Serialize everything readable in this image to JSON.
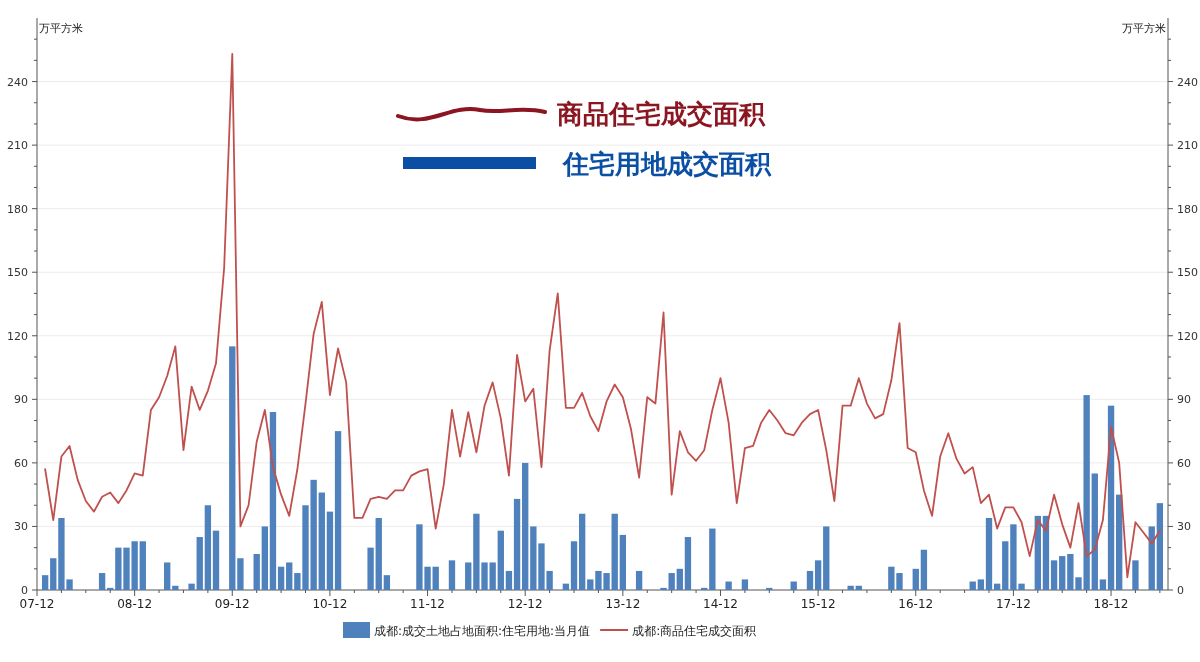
{
  "chart_data": {
    "type": "bar",
    "ylabel": "万平方米",
    "y2label": "万平方米",
    "categories": [
      "07-12",
      null,
      null,
      null,
      null,
      null,
      null,
      null,
      null,
      null,
      null,
      null,
      "08-12",
      null,
      null,
      null,
      null,
      null,
      null,
      null,
      null,
      null,
      null,
      null,
      "09-12",
      null,
      null,
      null,
      null,
      null,
      null,
      null,
      null,
      null,
      null,
      null,
      "10-12",
      null,
      null,
      null,
      null,
      null,
      null,
      null,
      null,
      null,
      null,
      null,
      "11-12",
      null,
      null,
      null,
      null,
      null,
      null,
      null,
      null,
      null,
      null,
      null,
      "12-12",
      null,
      null,
      null,
      null,
      null,
      null,
      null,
      null,
      null,
      null,
      null,
      "13-12",
      null,
      null,
      null,
      null,
      null,
      null,
      null,
      null,
      null,
      null,
      null,
      "14-12",
      null,
      null,
      null,
      null,
      null,
      null,
      null,
      null,
      null,
      null,
      null,
      "15-12",
      null,
      null,
      null,
      null,
      null,
      null,
      null,
      null,
      null,
      null,
      null,
      "16-12",
      null,
      null,
      null,
      null,
      null,
      null,
      null,
      null,
      null,
      null,
      null,
      "17-12",
      null,
      null,
      null,
      null,
      null,
      null,
      null,
      null,
      null,
      null,
      null,
      "18-12",
      null,
      null,
      null,
      null,
      null,
      null
    ],
    "series": [
      {
        "name": "成都:成交土地占地面积:住宅用地:当月值",
        "color": "#4f81bd",
        "values": [
          null,
          7,
          15,
          34,
          5,
          0,
          0,
          0,
          8,
          1,
          20,
          20,
          23,
          23,
          0,
          0,
          13,
          2,
          0,
          3,
          25,
          40,
          28,
          0,
          115,
          15,
          0,
          17,
          30,
          84,
          11,
          13,
          8,
          40,
          52,
          46,
          37,
          75,
          0,
          0,
          0,
          20,
          34,
          7,
          0,
          0,
          0,
          31,
          11,
          11,
          0,
          14,
          0,
          13,
          36,
          13,
          13,
          28,
          9,
          43,
          60,
          30,
          22,
          9,
          0,
          3,
          23,
          36,
          5,
          9,
          8,
          36,
          26,
          0,
          9,
          0,
          0,
          1,
          8,
          10,
          25,
          0,
          1,
          29,
          0,
          4,
          0,
          5,
          0,
          0,
          1,
          0,
          0,
          4,
          0,
          9,
          14,
          30,
          0,
          0,
          2,
          2,
          0,
          0,
          0,
          11,
          8,
          0,
          10,
          19,
          0,
          0,
          0,
          0,
          0,
          4,
          5,
          34,
          3,
          23,
          31,
          3,
          0,
          35,
          35,
          14,
          16,
          17,
          6,
          92,
          55,
          5,
          87,
          45,
          0,
          14,
          0,
          30,
          41
        ]
      },
      {
        "name": "成都:商品住宅成交面积",
        "type": "line",
        "color": "#c0504d",
        "values": [
          null,
          57,
          33,
          63,
          68,
          52,
          42,
          37,
          44,
          46,
          41,
          47,
          55,
          54,
          85,
          91,
          101,
          115,
          66,
          96,
          85,
          94,
          107,
          152,
          253,
          30,
          40,
          70,
          85,
          58,
          45,
          35,
          57,
          88,
          121,
          136,
          92,
          114,
          98,
          34,
          34,
          43,
          44,
          43,
          47,
          47,
          54,
          56,
          57,
          29,
          50,
          85,
          63,
          84,
          65,
          87,
          98,
          81,
          54,
          111,
          89,
          95,
          58,
          113,
          140,
          86,
          86,
          93,
          82,
          75,
          89,
          97,
          91,
          76,
          53,
          91,
          88,
          131,
          45,
          75,
          65,
          61,
          66,
          85,
          100,
          79,
          41,
          67,
          68,
          79,
          85,
          80,
          74,
          73,
          79,
          83,
          85,
          66,
          42,
          87,
          87,
          100,
          88,
          81,
          83,
          99,
          126,
          67,
          65,
          47,
          35,
          63,
          74,
          62,
          55,
          58,
          41,
          45,
          29,
          39,
          39,
          32,
          16,
          33,
          28,
          45,
          31,
          20,
          41,
          16,
          19,
          33,
          77,
          60,
          6,
          32,
          27,
          22,
          28
        ]
      }
    ],
    "ylim": [
      0,
      270
    ],
    "yticks": [
      0,
      {
        "value": 10,
        "label": null
      },
      {
        "value": 20,
        "label": null
      },
      30,
      {
        "value": 40,
        "label": null
      },
      {
        "value": 50,
        "label": null
      },
      60,
      {
        "value": 70,
        "label": null
      },
      {
        "value": 80,
        "label": null
      },
      90,
      {
        "value": 100,
        "label": null
      },
      {
        "value": 110,
        "label": null
      },
      120,
      {
        "value": 130,
        "label": null
      },
      {
        "value": 140,
        "label": null
      },
      150,
      {
        "value": 160,
        "label": null
      },
      {
        "value": 170,
        "label": null
      },
      180,
      {
        "value": 190,
        "label": null
      },
      {
        "value": 200,
        "label": null
      },
      210,
      {
        "value": 220,
        "label": null
      },
      {
        "value": 230,
        "label": null
      },
      240,
      {
        "value": 250,
        "label": null
      },
      {
        "value": 260,
        "label": null
      }
    ],
    "y2lim": [
      0,
      270
    ],
    "y2ticks": [
      0,
      {
        "value": 10,
        "label": null
      },
      {
        "value": 20,
        "label": null
      },
      30,
      {
        "value": 40,
        "label": null
      },
      {
        "value": 50,
        "label": null
      },
      60,
      {
        "value": 70,
        "label": null
      },
      {
        "value": 80,
        "label": null
      },
      90,
      {
        "value": 100,
        "label": null
      },
      {
        "value": 110,
        "label": null
      },
      120,
      {
        "value": 130,
        "label": null
      },
      {
        "value": 140,
        "label": null
      },
      150,
      {
        "value": 160,
        "label": null
      },
      {
        "value": 170,
        "label": null
      },
      180,
      {
        "value": 190,
        "label": null
      },
      {
        "value": 200,
        "label": null
      },
      210,
      {
        "value": 220,
        "label": null
      },
      {
        "value": 230,
        "label": null
      },
      240,
      {
        "value": 250,
        "label": null
      },
      {
        "value": 260,
        "label": null
      }
    ],
    "grid": "y",
    "legend": "bottom",
    "annotations": [
      "商品住宅成交面积",
      "住宅用地成交面积"
    ]
  }
}
